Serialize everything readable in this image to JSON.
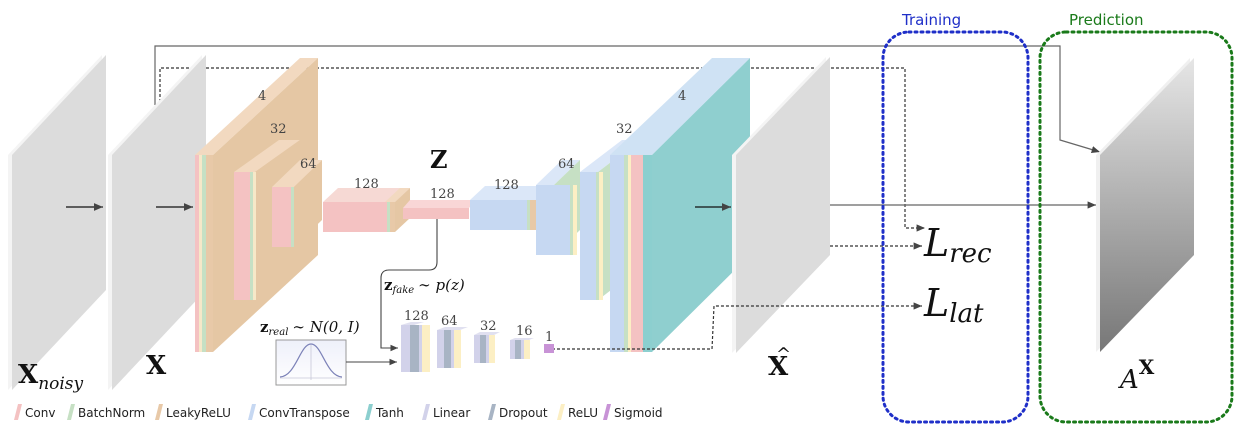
{
  "labels": {
    "x_noisy_main": "X",
    "x_noisy_sub": "noisy",
    "x": "X",
    "z": "Z",
    "x_hat": "X",
    "x_hat_accent": "^",
    "a_main": "A",
    "a_sup": "X",
    "training": "Training",
    "prediction": "Prediction",
    "l_rec_main": "L",
    "l_rec_sub": "rec",
    "l_lat_main": "L",
    "l_lat_sub": "lat",
    "z_fake_main": "z",
    "z_fake_sub": "fake",
    "z_fake_rest": "∼ p(z)",
    "z_real_main": "z",
    "z_real_sub": "real",
    "z_real_rest": "∼ N(0, I)"
  },
  "dims": {
    "enc": [
      "4",
      "32",
      "64",
      "128"
    ],
    "bottleneck": "128",
    "dec": [
      "128",
      "64",
      "32",
      "4"
    ],
    "disc": [
      "128",
      "64",
      "32",
      "16",
      "1"
    ]
  },
  "legend": [
    {
      "label": "Conv",
      "color": "#f4c2c2"
    },
    {
      "label": "BatchNorm",
      "color": "#c6e0c4"
    },
    {
      "label": "LeakyReLU",
      "color": "#e8c9a8"
    },
    {
      "label": "ConvTranspose",
      "color": "#c6d8f2"
    },
    {
      "label": "Tanh",
      "color": "#8ccfcf"
    },
    {
      "label": "Linear",
      "color": "#d2d2ea"
    },
    {
      "label": "Dropout",
      "color": "#a8b4c4"
    },
    {
      "label": "ReLU",
      "color": "#fcefc4"
    },
    {
      "label": "Sigmoid",
      "color": "#c893d6"
    }
  ],
  "colors": {
    "training_box": "#1f2fc8",
    "prediction_box": "#1a7a1a",
    "training_text": "#1f2fc8",
    "prediction_text": "#1a7a1a"
  }
}
